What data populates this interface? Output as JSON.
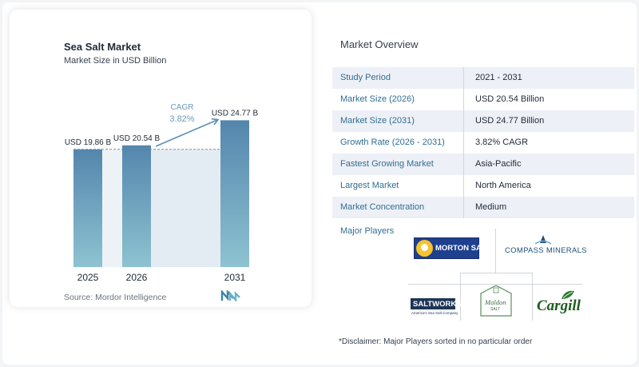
{
  "chart": {
    "title": "Sea Salt Market",
    "subtitle": "Market Size in USD Billion",
    "source": "Source: Mordor Intelligence",
    "cagr_label": "CAGR",
    "cagr_value": "3.82%"
  },
  "chart_data": {
    "type": "bar",
    "title": "Sea Salt Market",
    "subtitle": "Market Size in USD Billion",
    "categories": [
      "2025",
      "2026",
      "2031"
    ],
    "values": [
      19.86,
      20.54,
      24.77
    ],
    "data_labels": [
      "USD 19.86 B",
      "USD 20.54 B",
      "USD 24.77 B"
    ],
    "annotation": {
      "text": "CAGR 3.82%"
    },
    "grid": false,
    "colors": {
      "bar_top": "#5486ad",
      "bar_bottom": "#8dc3d1",
      "band": "#e4ecf3",
      "arrow": "#5b8fb5",
      "cagr_text": "#6a9ab9"
    }
  },
  "overview": {
    "title": "Market Overview",
    "rows": [
      {
        "label": "Study Period",
        "value": "2021 - 2031"
      },
      {
        "label": "Market Size (2026)",
        "value": "USD 20.54 Billion"
      },
      {
        "label": "Market Size (2031)",
        "value": "USD 24.77 Billion"
      },
      {
        "label": "Growth Rate (2026 - 2031)",
        "value": "3.82% CAGR"
      },
      {
        "label": "Fastest Growing Market",
        "value": "Asia-Pacific"
      },
      {
        "label": "Largest Market",
        "value": "North America"
      },
      {
        "label": "Market Concentration",
        "value": "Medium"
      }
    ]
  },
  "players": {
    "title": "Major Players",
    "logos": {
      "morton": "MORTON SALT",
      "compass": "COMPASS MINERALS",
      "saltworks": "SALTWORKS",
      "saltworks_tagline": "America's Sea Salt Company",
      "maldon": "Maldon",
      "maldon_sub": "SALT",
      "cargill": "Cargill"
    }
  },
  "disclaimer": "*Disclaimer: Major Players sorted in no particular order",
  "colors": {
    "label_blue": "#2f6f93",
    "row_shade": "#eef0f7"
  }
}
